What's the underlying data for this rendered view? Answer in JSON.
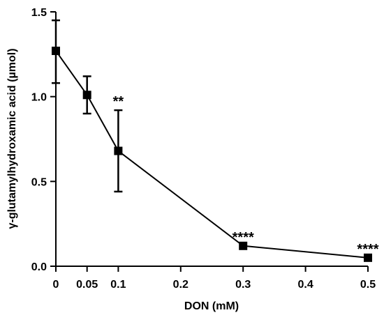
{
  "chart_data": {
    "type": "line",
    "title": "",
    "xlabel": "DON (mM)",
    "ylabel": "γ-glutamylhydroxamic acid (µmol)",
    "xlim": [
      0,
      0.5
    ],
    "ylim": [
      0,
      1.5
    ],
    "xticks": [
      "0",
      "0.05",
      "0.1",
      "0.2",
      "0.3",
      "0.4",
      "0.5"
    ],
    "yticks": [
      "0.0",
      "0.5",
      "1.0",
      "1.5"
    ],
    "grid": false,
    "legend": "none",
    "series": [
      {
        "x": [
          0,
          0.05,
          0.1,
          0.3,
          0.5
        ],
        "y": [
          1.27,
          1.01,
          0.68,
          0.12,
          0.05
        ],
        "err_low": [
          0.19,
          0.11,
          0.24,
          0.0,
          0.0
        ],
        "err_high": [
          0.18,
          0.11,
          0.24,
          0.0,
          0.0
        ],
        "annotations": [
          "",
          "",
          "**",
          "****",
          "****"
        ]
      }
    ],
    "colors": {
      "line": "#000000",
      "marker": "#000000"
    }
  }
}
